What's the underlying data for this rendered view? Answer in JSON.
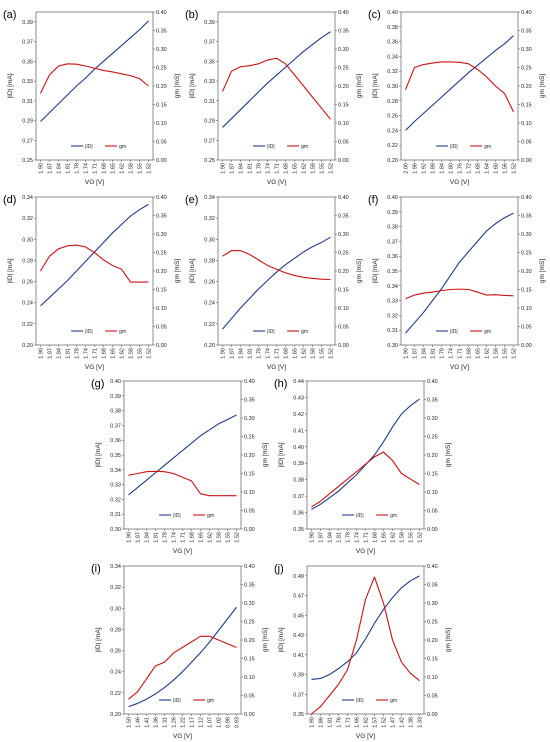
{
  "chart_data": [
    {
      "panel": "(a)",
      "type": "line",
      "xlabel": "VG [V]",
      "ylabel_left": "|ID| [mA]",
      "ylabel_right": "gm [mS]",
      "x_ticks": [
        "1.90",
        "1.87",
        "1.84",
        "1.81",
        "1.78",
        "1.74",
        "1.71",
        "1.68",
        "1.65",
        "1.62",
        "1.58",
        "1.55",
        "1.52"
      ],
      "ylim_left": [
        0.25,
        0.4
      ],
      "left_ticks": [
        "0.25",
        "0.27",
        "0.29",
        "0.31",
        "0.33",
        "0.35",
        "0.37",
        "0.39"
      ],
      "ylim_right": [
        0,
        0.4
      ],
      "right_ticks": [
        "0.00",
        "0.05",
        "0.10",
        "0.15",
        "0.20",
        "0.25",
        "0.30",
        "0.35",
        "0.40"
      ],
      "series": [
        {
          "name": "|ID|",
          "axis": "left",
          "color": "#1f3a8a",
          "values": [
            0.289,
            0.298,
            0.307,
            0.316,
            0.325,
            0.333,
            0.342,
            0.35,
            0.358,
            0.366,
            0.374,
            0.382,
            0.391
          ]
        },
        {
          "name": "gm",
          "axis": "right",
          "color": "#cc1111",
          "values": [
            0.18,
            0.23,
            0.254,
            0.26,
            0.259,
            0.254,
            0.248,
            0.242,
            0.238,
            0.233,
            0.228,
            0.22,
            0.2
          ]
        }
      ]
    },
    {
      "panel": "(b)",
      "type": "line",
      "xlabel": "VG [V]",
      "ylabel_left": "|ID| [mA]",
      "ylabel_right": "gm [mS]",
      "x_ticks": [
        "1.90",
        "1.87",
        "1.84",
        "1.81",
        "1.78",
        "1.74",
        "1.71",
        "1.68",
        "1.65",
        "1.62",
        "1.58",
        "1.55",
        "1.52"
      ],
      "ylim_left": [
        0.25,
        0.4
      ],
      "left_ticks": [
        "0.25",
        "0.27",
        "0.29",
        "0.31",
        "0.33",
        "0.35",
        "0.37",
        "0.39"
      ],
      "ylim_right": [
        0,
        0.4
      ],
      "right_ticks": [
        "0.00",
        "0.05",
        "0.10",
        "0.15",
        "0.20",
        "0.25",
        "0.30",
        "0.35",
        "0.40"
      ],
      "series": [
        {
          "name": "|ID|",
          "axis": "left",
          "color": "#1f3a8a",
          "values": [
            0.283,
            0.292,
            0.301,
            0.31,
            0.319,
            0.328,
            0.336,
            0.344,
            0.352,
            0.36,
            0.367,
            0.374,
            0.38
          ]
        },
        {
          "name": "gm",
          "axis": "right",
          "color": "#cc1111",
          "values": [
            0.185,
            0.24,
            0.252,
            0.255,
            0.26,
            0.27,
            0.275,
            0.26,
            0.23,
            0.2,
            0.17,
            0.14,
            0.11
          ]
        }
      ]
    },
    {
      "panel": "(c)",
      "type": "line",
      "xlabel": "VG [V]",
      "ylabel_left": "|ID| [mA]",
      "ylabel_right": "gm [mS]",
      "x_ticks": [
        "2.00",
        "1.96",
        "1.92",
        "1.88",
        "1.84",
        "1.80",
        "1.76",
        "1.72",
        "1.68",
        "1.64",
        "1.60",
        "1.56",
        "1.52"
      ],
      "ylim_left": [
        0.2,
        0.4
      ],
      "left_ticks": [
        "0.20",
        "0.22",
        "0.24",
        "0.26",
        "0.28",
        "0.30",
        "0.32",
        "0.34",
        "0.36",
        "0.38",
        "0.40"
      ],
      "ylim_right": [
        0,
        0.4
      ],
      "right_ticks": [
        "0.00",
        "0.05",
        "0.10",
        "0.15",
        "0.20",
        "0.25",
        "0.30",
        "0.35",
        "0.40"
      ],
      "series": [
        {
          "name": "|ID|",
          "axis": "left",
          "color": "#1f3a8a",
          "values": [
            0.24,
            0.252,
            0.263,
            0.274,
            0.285,
            0.296,
            0.307,
            0.318,
            0.328,
            0.338,
            0.348,
            0.357,
            0.368
          ]
        },
        {
          "name": "gm",
          "axis": "right",
          "color": "#cc1111",
          "values": [
            0.19,
            0.25,
            0.258,
            0.262,
            0.265,
            0.265,
            0.264,
            0.26,
            0.245,
            0.225,
            0.2,
            0.18,
            0.13
          ]
        }
      ]
    },
    {
      "panel": "(d)",
      "type": "line",
      "xlabel": "VG [V]",
      "ylabel_left": "|ID| [mA]",
      "ylabel_right": "gm [mS]",
      "x_ticks": [
        "1.90",
        "1.87",
        "1.84",
        "1.81",
        "1.78",
        "1.74",
        "1.71",
        "1.68",
        "1.65",
        "1.62",
        "1.58",
        "1.55",
        "1.52"
      ],
      "ylim_left": [
        0.2,
        0.34
      ],
      "left_ticks": [
        "0.20",
        "0.22",
        "0.24",
        "0.26",
        "0.28",
        "0.30",
        "0.32",
        "0.34"
      ],
      "ylim_right": [
        0,
        0.4
      ],
      "right_ticks": [
        "0.00",
        "0.05",
        "0.10",
        "0.15",
        "0.20",
        "0.25",
        "0.30",
        "0.35",
        "0.40"
      ],
      "series": [
        {
          "name": "|ID|",
          "axis": "left",
          "color": "#1f3a8a",
          "values": [
            0.237,
            0.245,
            0.253,
            0.261,
            0.27,
            0.279,
            0.288,
            0.297,
            0.306,
            0.314,
            0.322,
            0.328,
            0.333
          ]
        },
        {
          "name": "gm",
          "axis": "right",
          "color": "#cc1111",
          "values": [
            0.2,
            0.24,
            0.26,
            0.268,
            0.27,
            0.265,
            0.25,
            0.23,
            0.215,
            0.205,
            0.17,
            0.17,
            0.17
          ]
        }
      ]
    },
    {
      "panel": "(e)",
      "type": "line",
      "xlabel": "VG [V]",
      "ylabel_left": "|ID| [mA]",
      "ylabel_right": "gm [mS]",
      "x_ticks": [
        "1.90",
        "1.87",
        "1.84",
        "1.81",
        "1.78",
        "1.74",
        "1.71",
        "1.68",
        "1.65",
        "1.62",
        "1.58",
        "1.55",
        "1.52"
      ],
      "ylim_left": [
        0.2,
        0.34
      ],
      "left_ticks": [
        "0.20",
        "0.22",
        "0.24",
        "0.26",
        "0.28",
        "0.30",
        "0.32",
        "0.34"
      ],
      "ylim_right": [
        0,
        0.4
      ],
      "right_ticks": [
        "0.00",
        "0.05",
        "0.10",
        "0.15",
        "0.20",
        "0.25",
        "0.30",
        "0.35",
        "0.40"
      ],
      "series": [
        {
          "name": "|ID|",
          "axis": "left",
          "color": "#1f3a8a",
          "values": [
            0.215,
            0.225,
            0.235,
            0.244,
            0.253,
            0.261,
            0.269,
            0.276,
            0.282,
            0.288,
            0.293,
            0.297,
            0.302
          ]
        },
        {
          "name": "gm",
          "axis": "right",
          "color": "#cc1111",
          "values": [
            0.24,
            0.255,
            0.255,
            0.245,
            0.23,
            0.215,
            0.205,
            0.195,
            0.188,
            0.183,
            0.18,
            0.178,
            0.177
          ]
        }
      ]
    },
    {
      "panel": "(f)",
      "type": "line",
      "xlabel": "VG [V]",
      "ylabel_left": "|ID| [mA]",
      "ylabel_right": "gm [mS]",
      "x_ticks": [
        "1.90",
        "1.87",
        "1.84",
        "1.81",
        "1.78",
        "1.74",
        "1.71",
        "1.68",
        "1.65",
        "1.62",
        "1.58",
        "1.55",
        "1.52"
      ],
      "ylim_left": [
        0.3,
        0.4
      ],
      "left_ticks": [
        "0.30",
        "0.31",
        "0.32",
        "0.33",
        "0.34",
        "0.35",
        "0.36",
        "0.37",
        "0.38",
        "0.39",
        "0.40"
      ],
      "ylim_right": [
        0,
        0.4
      ],
      "right_ticks": [
        "0.00",
        "0.05",
        "0.10",
        "0.15",
        "0.20",
        "0.25",
        "0.30",
        "0.35",
        "0.40"
      ],
      "series": [
        {
          "name": "|ID|",
          "axis": "left",
          "color": "#1f3a8a",
          "values": [
            0.308,
            0.315,
            0.322,
            0.33,
            0.338,
            0.347,
            0.356,
            0.363,
            0.37,
            0.377,
            0.382,
            0.386,
            0.389
          ]
        },
        {
          "name": "gm",
          "axis": "right",
          "color": "#cc1111",
          "values": [
            0.125,
            0.135,
            0.14,
            0.143,
            0.147,
            0.15,
            0.151,
            0.15,
            0.143,
            0.135,
            0.136,
            0.134,
            0.133
          ]
        }
      ]
    },
    {
      "panel": "(g)",
      "type": "line",
      "xlabel": "VG [V]",
      "ylabel_left": "|ID| [mA]",
      "ylabel_right": "gm [mS]",
      "x_ticks": [
        "1.90",
        "1.87",
        "1.84",
        "1.81",
        "1.78",
        "1.74",
        "1.71",
        "1.68",
        "1.65",
        "1.62",
        "1.58",
        "1.55",
        "1.52"
      ],
      "ylim_left": [
        0.3,
        0.4
      ],
      "left_ticks": [
        "0.30",
        "0.31",
        "0.32",
        "0.33",
        "0.34",
        "0.35",
        "0.36",
        "0.37",
        "0.38",
        "0.39",
        "0.40"
      ],
      "ylim_right": [
        0,
        0.4
      ],
      "right_ticks": [
        "0.00",
        "0.05",
        "0.10",
        "0.15",
        "0.20",
        "0.25",
        "0.30",
        "0.35",
        "0.40"
      ],
      "series": [
        {
          "name": "|ID|",
          "axis": "left",
          "color": "#1f3a8a",
          "values": [
            0.323,
            0.328,
            0.333,
            0.338,
            0.343,
            0.348,
            0.353,
            0.358,
            0.363,
            0.367,
            0.371,
            0.374,
            0.377
          ]
        },
        {
          "name": "gm",
          "axis": "right",
          "color": "#cc1111",
          "values": [
            0.145,
            0.15,
            0.155,
            0.156,
            0.155,
            0.15,
            0.14,
            0.13,
            0.095,
            0.09,
            0.09,
            0.09,
            0.09
          ]
        }
      ]
    },
    {
      "panel": "(h)",
      "type": "line",
      "xlabel": "VG [V]",
      "ylabel_left": "|ID| [mA]",
      "ylabel_right": "gm [mS]",
      "x_ticks": [
        "1.90",
        "1.87",
        "1.84",
        "1.81",
        "1.78",
        "1.74",
        "1.71",
        "1.68",
        "1.65",
        "1.62",
        "1.58",
        "1.55",
        "1.52"
      ],
      "ylim_left": [
        0.35,
        0.44
      ],
      "left_ticks": [
        "0.35",
        "0.36",
        "0.37",
        "0.38",
        "0.39",
        "0.40",
        "0.41",
        "0.42",
        "0.43",
        "0.44"
      ],
      "ylim_right": [
        0,
        0.4
      ],
      "right_ticks": [
        "0.00",
        "0.05",
        "0.10",
        "0.15",
        "0.20",
        "0.25",
        "0.30",
        "0.35",
        "0.40"
      ],
      "series": [
        {
          "name": "|ID|",
          "axis": "left",
          "color": "#1f3a8a",
          "values": [
            0.362,
            0.365,
            0.369,
            0.373,
            0.378,
            0.383,
            0.389,
            0.395,
            0.403,
            0.412,
            0.42,
            0.425,
            0.429
          ]
        },
        {
          "name": "gm",
          "axis": "right",
          "color": "#cc1111",
          "values": [
            0.06,
            0.075,
            0.095,
            0.115,
            0.135,
            0.155,
            0.175,
            0.195,
            0.208,
            0.185,
            0.15,
            0.135,
            0.12
          ]
        }
      ]
    },
    {
      "panel": "(i)",
      "type": "line",
      "xlabel": "VG [V]",
      "ylabel_left": "|ID| [mA]",
      "ylabel_right": "gm [mS]",
      "x_ticks": [
        "1.50",
        "1.46",
        "1.41",
        "1.36",
        "1.31",
        "1.26",
        "1.22",
        "1.17",
        "1.12",
        "1.07",
        "1.02",
        "0.98",
        "0.93"
      ],
      "ylim_left": [
        0.2,
        0.34
      ],
      "left_ticks": [
        "0.20",
        "0.22",
        "0.24",
        "0.26",
        "0.28",
        "0.30",
        "0.32",
        "0.34"
      ],
      "ylim_right": [
        0,
        0.4
      ],
      "right_ticks": [
        "0.00",
        "0.05",
        "0.10",
        "0.15",
        "0.20",
        "0.25",
        "0.30",
        "0.35",
        "0.40"
      ],
      "series": [
        {
          "name": "|ID|",
          "axis": "left",
          "color": "#1f3a8a",
          "values": [
            0.207,
            0.21,
            0.214,
            0.219,
            0.225,
            0.232,
            0.24,
            0.249,
            0.258,
            0.268,
            0.279,
            0.29,
            0.301
          ]
        },
        {
          "name": "gm",
          "axis": "right",
          "color": "#cc1111",
          "values": [
            0.04,
            0.06,
            0.095,
            0.13,
            0.14,
            0.165,
            0.18,
            0.195,
            0.21,
            0.21,
            0.2,
            0.19,
            0.18
          ]
        }
      ]
    },
    {
      "panel": "(j)",
      "type": "line",
      "xlabel": "VG [V]",
      "ylabel_left": "|ID| [mA]",
      "ylabel_right": "gm [mS]",
      "x_ticks": [
        "1.90",
        "1.86",
        "1.81",
        "1.76",
        "1.71",
        "1.66",
        "1.62",
        "1.57",
        "1.52",
        "1.47",
        "1.42",
        "1.38",
        "1.33"
      ],
      "ylim_left": [
        0.35,
        0.5
      ],
      "left_ticks": [
        "0.35",
        "0.37",
        "0.39",
        "0.41",
        "0.43",
        "0.45",
        "0.47",
        "0.49"
      ],
      "ylim_right": [
        0,
        0.4
      ],
      "right_ticks": [
        "0.00",
        "0.05",
        "0.10",
        "0.15",
        "0.20",
        "0.25",
        "0.30",
        "0.35",
        "0.40"
      ],
      "series": [
        {
          "name": "|ID|",
          "axis": "left",
          "color": "#1f3a8a",
          "values": [
            0.385,
            0.386,
            0.39,
            0.396,
            0.403,
            0.412,
            0.426,
            0.442,
            0.456,
            0.468,
            0.478,
            0.485,
            0.49
          ]
        },
        {
          "name": "gm",
          "axis": "right",
          "color": "#cc1111",
          "values": [
            0.0,
            0.02,
            0.05,
            0.08,
            0.12,
            0.2,
            0.31,
            0.37,
            0.3,
            0.2,
            0.14,
            0.11,
            0.09
          ]
        }
      ]
    }
  ]
}
